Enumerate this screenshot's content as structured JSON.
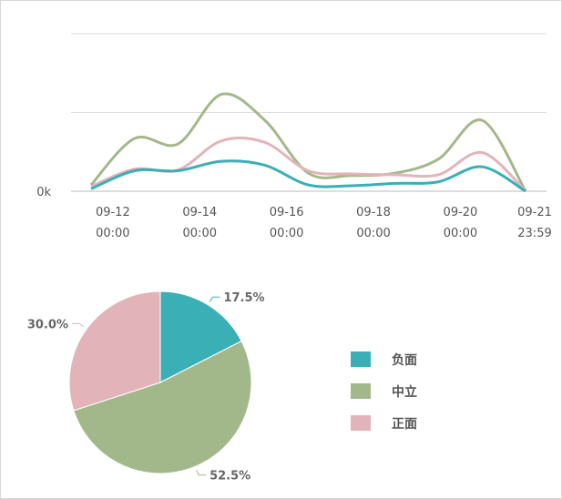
{
  "chart_data": [
    {
      "type": "line",
      "xticks": [
        [
          "09-12",
          "00:00"
        ],
        [
          "09-14",
          "00:00"
        ],
        [
          "09-16",
          "00:00"
        ],
        [
          "09-18",
          "00:00"
        ],
        [
          "09-20",
          "00:00"
        ],
        [
          "09-21",
          "23:59"
        ]
      ],
      "ylim": [
        0,
        200
      ],
      "yticks": [
        {
          "value": 0,
          "label": "0k"
        },
        {
          "value": 100,
          "label": null
        },
        {
          "value": 200,
          "label": null
        }
      ],
      "grid": true,
      "series": [
        {
          "name": "中立",
          "color": "#a3b88a",
          "values": [
            8,
            67,
            60,
            123,
            90,
            23,
            20,
            23,
            41,
            90,
            0
          ]
        },
        {
          "name": "正面",
          "color": "#e2b4ba",
          "values": [
            6,
            28,
            27,
            64,
            62,
            26,
            22,
            21,
            21,
            49,
            0
          ]
        },
        {
          "name": "负面",
          "color": "#3aafb5",
          "values": [
            3,
            26,
            26,
            38,
            33,
            8,
            7,
            10,
            12,
            31,
            0
          ]
        }
      ]
    },
    {
      "type": "pie",
      "categories": [
        "负面",
        "中立",
        "正面"
      ],
      "colors": [
        "#3aafb5",
        "#a3b88a",
        "#e2b4ba"
      ],
      "values": [
        17.5,
        52.5,
        30.0
      ],
      "value_labels": [
        "17.5%",
        "52.5%",
        "30.0%"
      ]
    }
  ]
}
